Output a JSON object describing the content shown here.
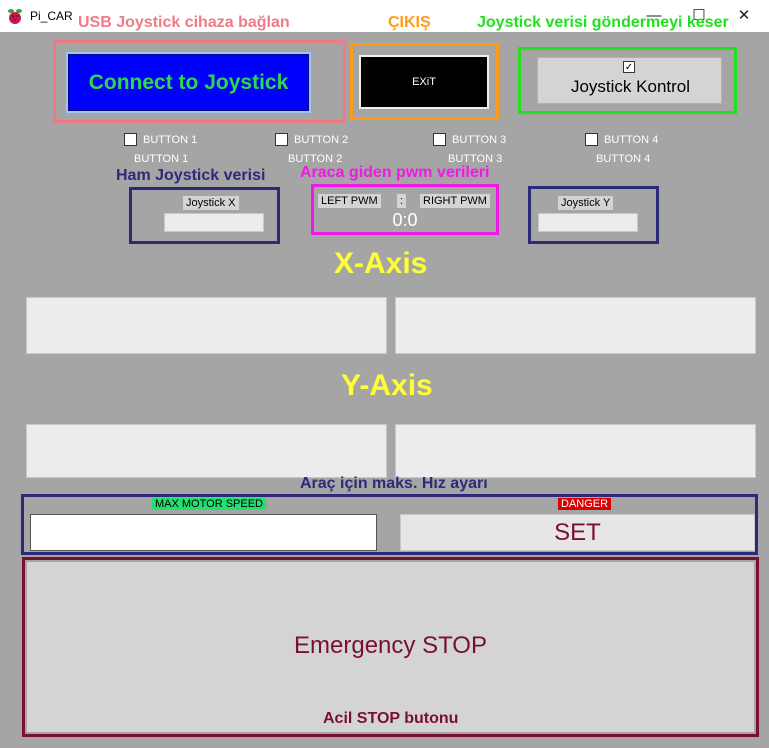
{
  "window": {
    "title": "Pi_CAR",
    "minimize": "—",
    "maximize": "☐",
    "close": "✕"
  },
  "annotations": {
    "usb_connect": "USB Joystick  cihaza bağlan",
    "exit": "ÇIKIŞ",
    "joystick_stop": "Joystick verisi göndermeyi keser",
    "raw_data": "Ham Joystick verisi",
    "pwm_data": "Araca giden pwm verileri",
    "max_speed": "Araç için maks. Hız ayarı",
    "emergency": "Acil STOP butonu"
  },
  "controls": {
    "connect_label": "Connect to Joystick",
    "exit_label": "EXiT",
    "joystick_control_label": "Joystick Kontrol",
    "joystick_control_checked": true
  },
  "buttons": [
    {
      "checkbox_label": "BUTTON 1",
      "status": "BUTTON 1"
    },
    {
      "checkbox_label": "BUTTON 2",
      "status": "BUTTON 2"
    },
    {
      "checkbox_label": "BUTTON 3",
      "status": "BUTTON 3"
    },
    {
      "checkbox_label": "BUTTON 4",
      "status": "BUTTON 4"
    }
  ],
  "joystick_x": {
    "label": "Joystick X",
    "value": ""
  },
  "joystick_y": {
    "label": "Joystick Y",
    "value": ""
  },
  "pwm": {
    "left_label": "LEFT PWM",
    "sep": ":",
    "right_label": "RIGHT PWM",
    "value": "0:0"
  },
  "axes": {
    "x_title": "X-Axis",
    "y_title": "Y-Axis"
  },
  "speed": {
    "max_label": "MAX MOTOR SPEED",
    "max_value": "",
    "danger_label": "DANGER",
    "set_label": "SET"
  },
  "emergency": {
    "label": "Emergency STOP"
  },
  "colors": {
    "background": "#a5a5a5",
    "connect_bg": "#0000ff",
    "connect_text": "#2bd94a",
    "pink": "#f07a86",
    "orange": "#ff9a1a",
    "green": "#22e01e",
    "navy": "#2e2a7a",
    "magenta": "#f019e6",
    "yellow": "#ffff33",
    "maroon": "#7a1030",
    "danger": "#dd0000",
    "speed_tag": "#20e070"
  }
}
